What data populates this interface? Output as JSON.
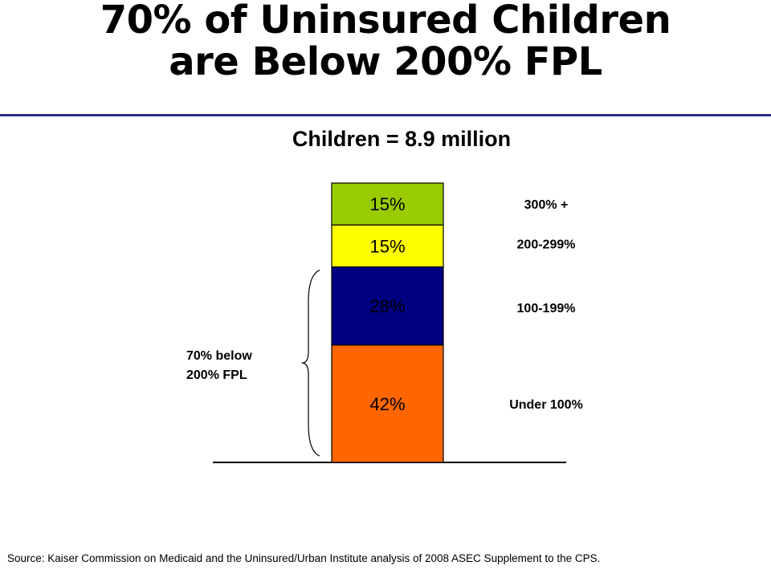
{
  "title": {
    "line1": "70% of Uninsured Children",
    "line2": "are Below 200% FPL"
  },
  "subtitle": "Children = 8.9 million",
  "chart_data": {
    "type": "bar",
    "stacked": true,
    "categories": [
      ""
    ],
    "series": [
      {
        "name": "Under 100%",
        "values": [
          42
        ],
        "label": "42%",
        "color": "#ff6600"
      },
      {
        "name": "100-199%",
        "values": [
          28
        ],
        "label": "28%",
        "color": "#000080"
      },
      {
        "name": "200-299%",
        "values": [
          15
        ],
        "label": "15%",
        "color": "#ffff00"
      },
      {
        "name": "300% +",
        "values": [
          15
        ],
        "label": "15%",
        "color": "#99cc00"
      }
    ],
    "unit": "%",
    "ylim": [
      0,
      100
    ],
    "legend": "right",
    "grid": false,
    "annotation": {
      "text_line1": "70% below",
      "text_line2": "200% FPL",
      "spans": [
        "Under 100%",
        "100-199%"
      ]
    }
  },
  "source": "Source: Kaiser Commission on Medicaid and the Uninsured/Urban Institute analysis of 2008 ASEC Supplement to the CPS."
}
